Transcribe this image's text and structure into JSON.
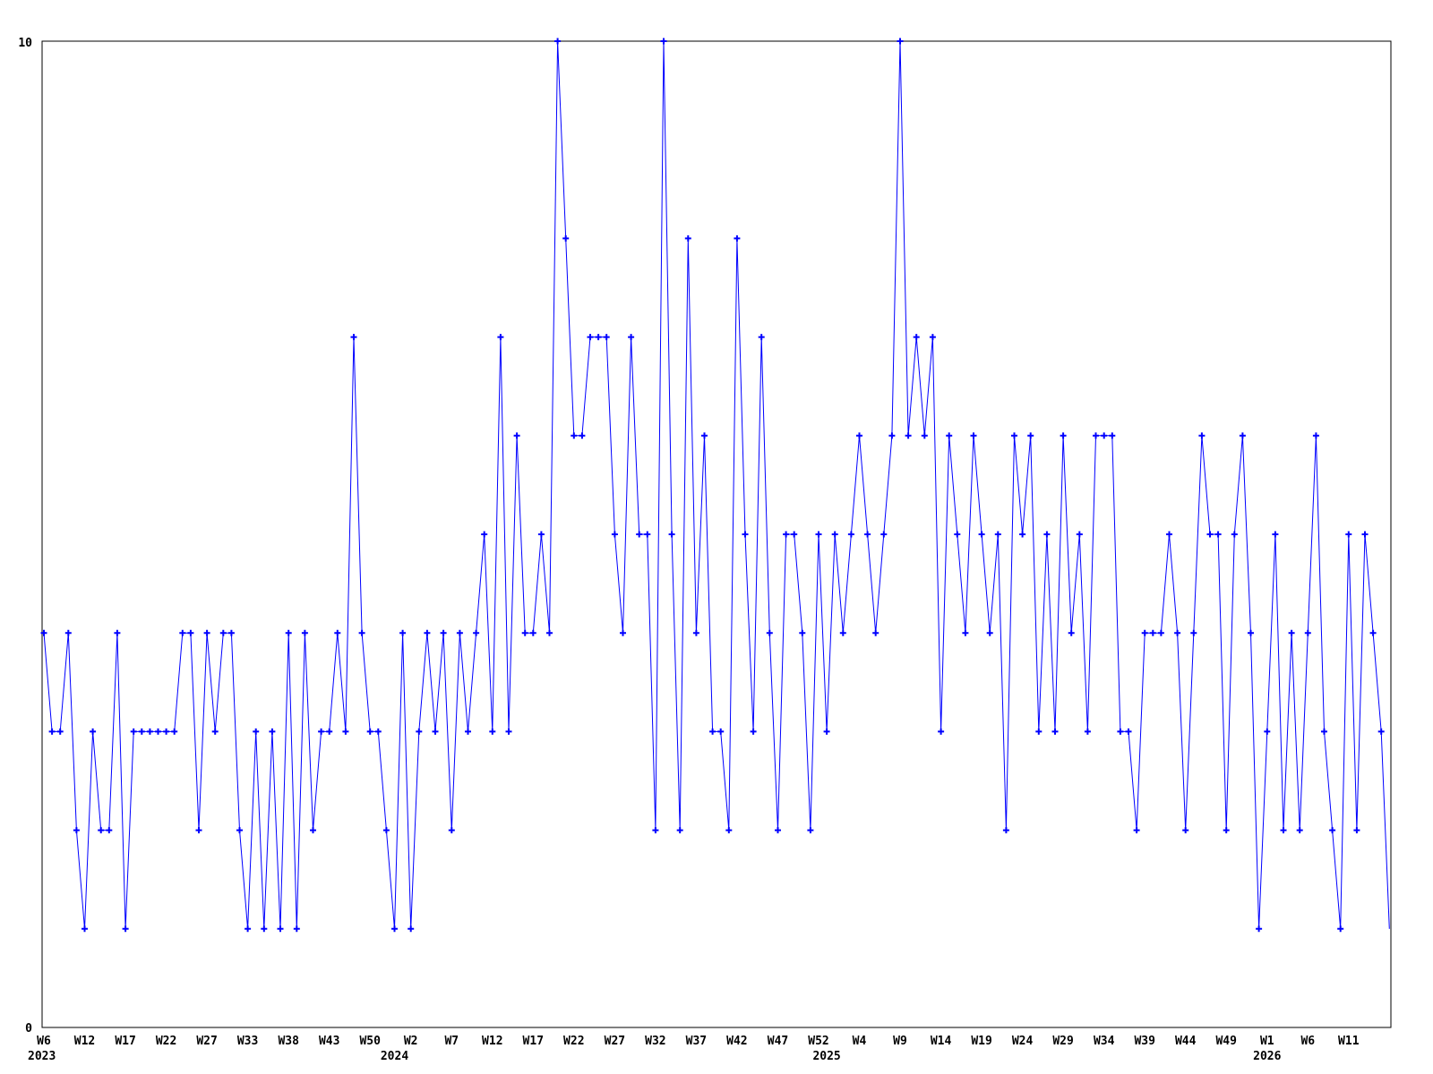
{
  "chart_data": {
    "type": "line",
    "title": "",
    "xlabel": "",
    "ylabel": "",
    "ylim": [
      0,
      10
    ],
    "y_axis": {
      "min_label": "0",
      "max_label": "10"
    },
    "grid": false,
    "legend": "none",
    "colors": {
      "line": "#0000ff",
      "axis": "#000000",
      "background": "#ffffff"
    },
    "marker": "plus",
    "tick_step": 5,
    "x_tick_labels": [
      "W6",
      "W12",
      "W17",
      "W22",
      "W27",
      "W33",
      "W38",
      "W43",
      "W50",
      "W2",
      "W7",
      "W12",
      "W17",
      "W22",
      "W27",
      "W32",
      "W37",
      "W42",
      "W47",
      "W52",
      "W4",
      "W9",
      "W14",
      "W19",
      "W24",
      "W29",
      "W34",
      "W39",
      "W44",
      "W49",
      "W1",
      "W6",
      "W11"
    ],
    "year_labels": [
      {
        "label": "2023",
        "point_index": 0
      },
      {
        "label": "2024",
        "point_index": 43
      },
      {
        "label": "2025",
        "point_index": 96
      },
      {
        "label": "2026",
        "point_index": 150
      }
    ],
    "values": [
      4,
      3,
      3,
      4,
      2,
      1,
      3,
      2,
      2,
      4,
      1,
      3,
      3,
      3,
      3,
      3,
      3,
      4,
      4,
      2,
      4,
      3,
      4,
      4,
      2,
      1,
      3,
      1,
      3,
      1,
      4,
      1,
      4,
      2,
      3,
      3,
      4,
      3,
      7,
      4,
      3,
      3,
      2,
      1,
      4,
      1,
      3,
      4,
      3,
      4,
      2,
      4,
      3,
      4,
      5,
      3,
      7,
      3,
      6,
      4,
      4,
      5,
      4,
      10,
      8,
      6,
      6,
      7,
      7,
      7,
      5,
      4,
      7,
      5,
      5,
      2,
      10,
      5,
      2,
      8,
      4,
      6,
      3,
      3,
      2,
      8,
      5,
      3,
      7,
      4,
      2,
      5,
      5,
      4,
      2,
      5,
      3,
      5,
      4,
      5,
      6,
      5,
      4,
      5,
      6,
      10,
      6,
      7,
      6,
      7,
      3,
      6,
      5,
      4,
      6,
      5,
      4,
      5,
      2,
      6,
      5,
      6,
      3,
      5,
      3,
      6,
      4,
      5,
      3,
      6,
      6,
      6,
      3,
      3,
      2,
      4,
      4,
      4,
      5,
      4,
      2,
      4,
      6,
      5,
      5,
      2,
      5,
      6,
      4,
      1,
      3,
      5,
      2,
      4,
      2,
      4,
      6,
      3,
      2,
      1,
      5,
      2,
      5,
      4,
      3,
      1
    ]
  }
}
